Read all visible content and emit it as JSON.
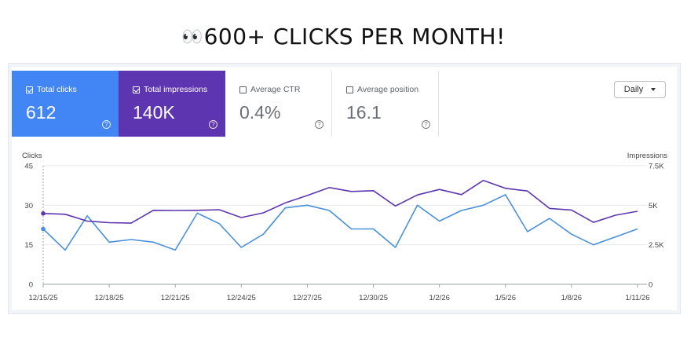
{
  "headline": {
    "emoji": "👀",
    "text": "600+ CLICKS PER MONTH!"
  },
  "metrics": [
    {
      "label": "Total clicks",
      "value": "612",
      "checked": true
    },
    {
      "label": "Total impressions",
      "value": "140K",
      "checked": true
    },
    {
      "label": "Average CTR",
      "value": "0.4%",
      "checked": false
    },
    {
      "label": "Average position",
      "value": "16.1",
      "checked": false
    }
  ],
  "help_glyph": "?",
  "period_select": {
    "value": "Daily"
  },
  "colors": {
    "clicks": "#4a90d9",
    "impressions": "#5e35b1",
    "clicks_card": "#4285f4",
    "impressions_card": "#5e35b1"
  },
  "chart_data": {
    "type": "line",
    "left_axis": {
      "title": "Clicks",
      "ticks": [
        "0",
        "15",
        "30",
        "45"
      ],
      "range": [
        0,
        45
      ]
    },
    "right_axis": {
      "title": "Impressions",
      "ticks": [
        "0",
        "2.5K",
        "5K",
        "7.5K"
      ],
      "range": [
        0,
        7500
      ]
    },
    "x_tick_labels": [
      "12/15/25",
      "12/18/25",
      "12/21/25",
      "12/24/25",
      "12/27/25",
      "12/30/25",
      "1/2/26",
      "1/5/26",
      "1/8/26",
      "1/11/26"
    ],
    "dates": [
      "12/15/25",
      "12/16/25",
      "12/17/25",
      "12/18/25",
      "12/19/25",
      "12/20/25",
      "12/21/25",
      "12/22/25",
      "12/23/25",
      "12/24/25",
      "12/25/25",
      "12/26/25",
      "12/27/25",
      "12/28/25",
      "12/29/25",
      "12/30/25",
      "12/31/25",
      "1/1/26",
      "1/2/26",
      "1/3/26",
      "1/4/26",
      "1/5/26",
      "1/6/26",
      "1/7/26",
      "1/8/26",
      "1/9/26",
      "1/10/26",
      "1/11/26"
    ],
    "series": [
      {
        "name": "Clicks",
        "axis": "left",
        "values": [
          21,
          13,
          26,
          16,
          17,
          16,
          13,
          27,
          23,
          14,
          19,
          29,
          30,
          28,
          21,
          21,
          14,
          30,
          24,
          28,
          30,
          34,
          20,
          25,
          19,
          15,
          18,
          21
        ]
      },
      {
        "name": "Impressions",
        "axis": "right",
        "values": [
          4480,
          4430,
          4000,
          3900,
          3870,
          4680,
          4670,
          4680,
          4720,
          4220,
          4520,
          5150,
          5620,
          6120,
          5870,
          5920,
          4950,
          5650,
          6000,
          5670,
          6570,
          6070,
          5900,
          4800,
          4700,
          3920,
          4370,
          4620
        ]
      }
    ],
    "grid": true,
    "legend": "none"
  }
}
